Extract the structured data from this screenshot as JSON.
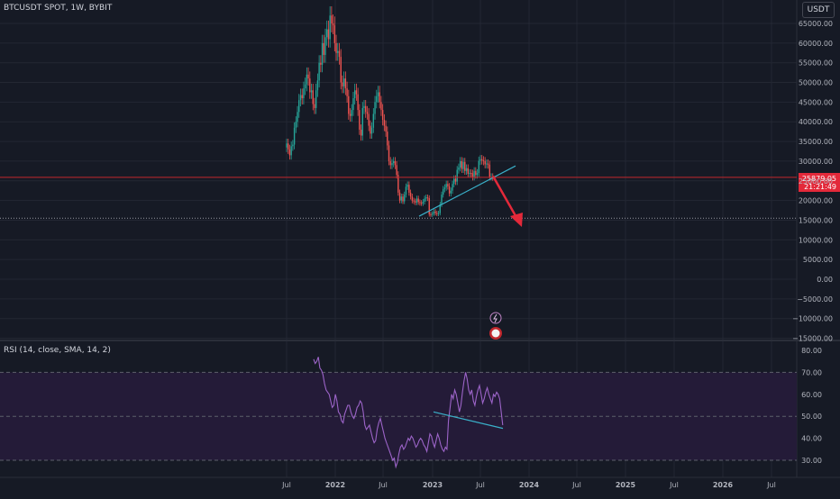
{
  "header": {
    "symbol": "BTCUSDT SPOT, 1W, BYBIT",
    "currency_button": "USDT"
  },
  "price_tag": {
    "price": "25879.05",
    "countdown": "21:21:49"
  },
  "rsi": {
    "label": "RSI (14, close, SMA, 14, 2)"
  },
  "colors": {
    "background": "#161a25",
    "up": "#26a69a",
    "down": "#ef5350",
    "rsi": "#9c64c8",
    "trend": "#3ab0c9",
    "arrow": "#e3293a",
    "price_line": "#c1272d"
  },
  "chart_data": [
    {
      "type": "candlestick",
      "x_ticks": [
        "Jul",
        "2022",
        "Jul",
        "2023",
        "Jul",
        "2024",
        "Jul",
        "2025",
        "Jul",
        "2026",
        "Jul"
      ],
      "y_ticks": [
        "65000.00",
        "60000.00",
        "55000.00",
        "50000.00",
        "45000.00",
        "40000.00",
        "35000.00",
        "30000.00",
        "25000.00",
        "20000.00",
        "15000.00",
        "10000.00",
        "5000.00",
        "0.00",
        "−5000.00",
        "−10000.00",
        "−15000.00"
      ],
      "ylim": [
        -15000,
        70000
      ],
      "current_price": 25879.05,
      "candles_weekly_close": [
        34500,
        33000,
        31500,
        33800,
        34200,
        38500,
        40000,
        42500,
        45500,
        46800,
        46000,
        48500,
        49500,
        52000,
        51000,
        47500,
        48000,
        44500,
        43500,
        48000,
        50500,
        55000,
        54500,
        60000,
        57000,
        61500,
        63500,
        61000,
        67000,
        65000,
        64500,
        60000,
        57500,
        58000,
        56500,
        50000,
        49000,
        51000,
        48500,
        46500,
        42000,
        41500,
        43000,
        46000,
        48000,
        47000,
        43000,
        38000,
        36500,
        43500,
        44000,
        42500,
        42000,
        39000,
        37000,
        38500,
        42000,
        45000,
        46500,
        47500,
        45000,
        43000,
        40500,
        39000,
        37500,
        34000,
        30000,
        29000,
        29500,
        30000,
        29000,
        26500,
        22000,
        20000,
        21000,
        19800,
        21500,
        23500,
        24000,
        22000,
        21000,
        20000,
        19800,
        19500,
        20500,
        19600,
        19400,
        19300,
        19700,
        20500,
        20800,
        20600,
        16500,
        16400,
        16700,
        17200,
        16800,
        16600,
        16800,
        19000,
        21500,
        22900,
        23300,
        24200,
        23600,
        21800,
        22500,
        24200,
        25500,
        24800,
        27800,
        28400,
        30000,
        28000,
        29800,
        27500,
        28200,
        26800,
        27000,
        26900,
        26000,
        27500,
        26500,
        27000,
        30100,
        30500,
        30200,
        30000,
        29200,
        29400,
        29100,
        26000,
        26000,
        25900
      ],
      "trendline": {
        "from": [
          "Nov 2022",
          16000
        ],
        "to": [
          "Nov 2023",
          28500
        ]
      },
      "projection_arrow": {
        "from": [
          "Aug 2023",
          26000
        ],
        "to": [
          "Oct 2023",
          13500
        ]
      },
      "horizontal_levels": [
        25879.05,
        15500
      ],
      "markers": [
        "lightning-icon",
        "earnings-icon"
      ]
    },
    {
      "type": "line",
      "name": "RSI (14, close, SMA, 14, 2)",
      "y_ticks": [
        "80.00",
        "70.00",
        "60.00",
        "50.00",
        "40.00",
        "30.00"
      ],
      "ylim": [
        28,
        82
      ],
      "levels": [
        70,
        50,
        30
      ],
      "values": [
        76,
        74,
        75,
        77,
        72,
        71,
        69,
        65,
        62,
        61,
        60,
        57,
        54,
        55,
        60,
        57,
        52,
        51,
        48,
        47,
        51,
        53,
        55,
        55,
        52,
        50,
        49,
        51,
        54,
        55,
        57,
        56,
        52,
        46,
        44,
        45,
        46,
        43,
        40,
        38,
        39,
        44,
        47,
        49,
        46,
        43,
        40,
        38,
        36,
        34,
        32,
        30,
        31,
        27,
        29,
        33,
        36,
        37,
        35,
        36,
        38,
        40,
        39,
        41,
        40,
        38,
        36,
        37,
        39,
        40,
        39,
        37,
        36,
        34,
        38,
        42,
        41,
        38,
        36,
        39,
        42,
        40,
        37,
        35,
        34,
        36,
        35,
        48,
        54,
        60,
        58,
        62,
        60,
        56,
        52,
        55,
        61,
        66,
        70,
        67,
        62,
        60,
        62,
        57,
        55,
        59,
        62,
        64,
        60,
        56,
        58,
        61,
        63,
        60,
        58,
        56,
        60,
        59,
        61,
        60,
        58,
        52,
        46
      ],
      "trendline": {
        "from": [
          "Nov 2022",
          52
        ],
        "to": [
          "Sep 2023",
          44.5
        ]
      }
    }
  ]
}
